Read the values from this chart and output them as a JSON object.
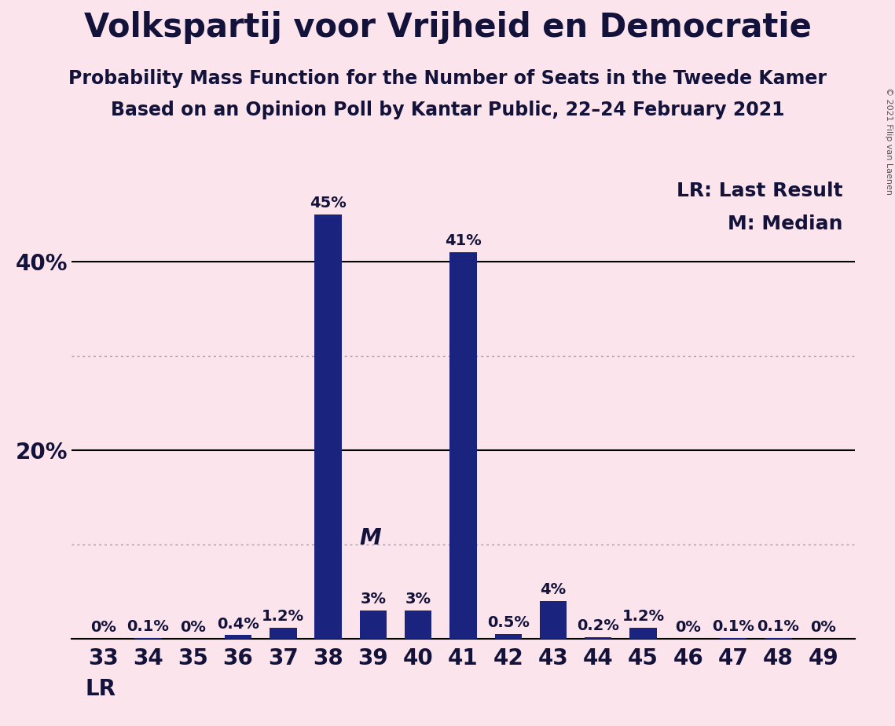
{
  "title": "Volkspartij voor Vrijheid en Democratie",
  "subtitle1": "Probability Mass Function for the Number of Seats in the Tweede Kamer",
  "subtitle2": "Based on an Opinion Poll by Kantar Public, 22–24 February 2021",
  "copyright": "© 2021 Filip van Laenen",
  "categories": [
    33,
    34,
    35,
    36,
    37,
    38,
    39,
    40,
    41,
    42,
    43,
    44,
    45,
    46,
    47,
    48,
    49
  ],
  "values": [
    0.0,
    0.1,
    0.0,
    0.4,
    1.2,
    45.0,
    3.0,
    3.0,
    41.0,
    0.5,
    4.0,
    0.2,
    1.2,
    0.0,
    0.1,
    0.1,
    0.0
  ],
  "bar_color": "#1a237e",
  "background_color": "#fce4ec",
  "text_color": "#12123a",
  "solid_gridline_values": [
    20,
    40
  ],
  "dotted_gridline_values": [
    10,
    30
  ],
  "ylim": [
    0,
    50
  ],
  "yticks": [
    20,
    40
  ],
  "median_seat": 39,
  "lr_seat": 33,
  "title_fontsize": 30,
  "subtitle_fontsize": 17,
  "bar_label_fontsize": 14,
  "axis_tick_fontsize": 20,
  "legend_fontsize": 18
}
